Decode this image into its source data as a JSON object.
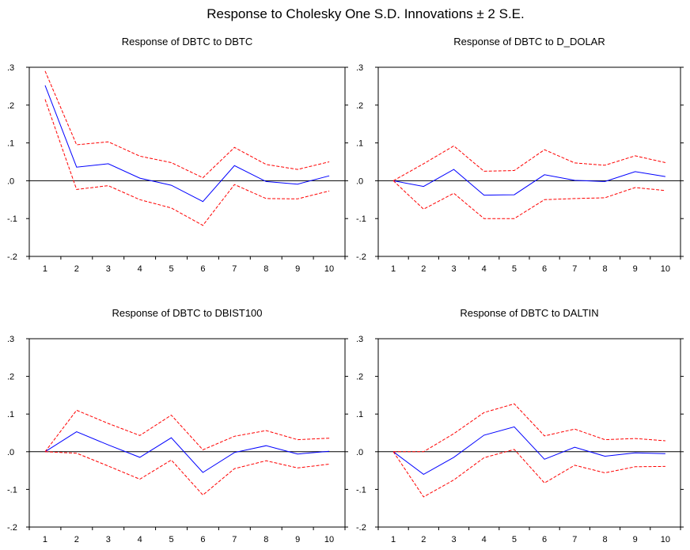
{
  "figure": {
    "title": "Response to Cholesky One S.D. Innovations ± 2 S.E."
  },
  "colors": {
    "response": "#0000ff",
    "band": "#ff0000",
    "axis": "#000000",
    "zero_line": "#000000"
  },
  "chart_data": [
    {
      "type": "line",
      "title": "Response of DBTC to DBTC",
      "x": [
        1,
        2,
        3,
        4,
        5,
        6,
        7,
        8,
        9,
        10
      ],
      "ylim": [
        -0.2,
        0.3
      ],
      "yticks": [
        ".3",
        ".2",
        ".1",
        ".0",
        "-.1",
        "-.2"
      ],
      "grid": false,
      "series": [
        {
          "role": "response",
          "values": [
            0.252,
            0.036,
            0.045,
            0.007,
            -0.012,
            -0.055,
            0.04,
            -0.002,
            -0.009,
            0.013
          ]
        },
        {
          "role": "upper",
          "values": [
            0.29,
            0.095,
            0.103,
            0.065,
            0.048,
            0.008,
            0.088,
            0.043,
            0.03,
            0.05
          ]
        },
        {
          "role": "lower",
          "values": [
            0.215,
            -0.023,
            -0.013,
            -0.05,
            -0.072,
            -0.118,
            -0.01,
            -0.047,
            -0.048,
            -0.027
          ]
        }
      ]
    },
    {
      "type": "line",
      "title": "Response of DBTC to D_DOLAR",
      "x": [
        1,
        2,
        3,
        4,
        5,
        6,
        7,
        8,
        9,
        10
      ],
      "ylim": [
        -0.2,
        0.3
      ],
      "yticks": [
        ".3",
        ".2",
        ".1",
        ".0",
        "-.1",
        "-.2"
      ],
      "grid": false,
      "series": [
        {
          "role": "response",
          "values": [
            0.0,
            -0.015,
            0.03,
            -0.038,
            -0.037,
            0.016,
            0.001,
            -0.002,
            0.024,
            0.011
          ]
        },
        {
          "role": "upper",
          "values": [
            0.0,
            0.045,
            0.092,
            0.025,
            0.027,
            0.082,
            0.047,
            0.041,
            0.066,
            0.048
          ]
        },
        {
          "role": "lower",
          "values": [
            0.0,
            -0.075,
            -0.033,
            -0.1,
            -0.1,
            -0.05,
            -0.047,
            -0.045,
            -0.018,
            -0.026
          ]
        }
      ]
    },
    {
      "type": "line",
      "title": "Response of DBTC to DBIST100",
      "x": [
        1,
        2,
        3,
        4,
        5,
        6,
        7,
        8,
        9,
        10
      ],
      "ylim": [
        -0.2,
        0.3
      ],
      "yticks": [
        ".3",
        ".2",
        ".1",
        ".0",
        "-.1",
        "-.2"
      ],
      "grid": false,
      "series": [
        {
          "role": "response",
          "values": [
            0.0,
            0.053,
            0.018,
            -0.015,
            0.037,
            -0.055,
            -0.002,
            0.016,
            -0.006,
            0.001
          ]
        },
        {
          "role": "upper",
          "values": [
            0.0,
            0.11,
            0.075,
            0.043,
            0.097,
            0.005,
            0.041,
            0.056,
            0.032,
            0.036
          ]
        },
        {
          "role": "lower",
          "values": [
            0.0,
            -0.004,
            -0.038,
            -0.073,
            -0.022,
            -0.115,
            -0.045,
            -0.024,
            -0.043,
            -0.033
          ]
        }
      ]
    },
    {
      "type": "line",
      "title": "Response of DBTC to DALTIN",
      "x": [
        1,
        2,
        3,
        4,
        5,
        6,
        7,
        8,
        9,
        10
      ],
      "ylim": [
        -0.2,
        0.3
      ],
      "yticks": [
        ".3",
        ".2",
        ".1",
        ".0",
        "-.1",
        "-.2"
      ],
      "grid": false,
      "series": [
        {
          "role": "response",
          "values": [
            0.0,
            -0.06,
            -0.015,
            0.044,
            0.066,
            -0.02,
            0.012,
            -0.012,
            -0.003,
            -0.005
          ]
        },
        {
          "role": "upper",
          "values": [
            0.0,
            0.0,
            0.048,
            0.104,
            0.127,
            0.042,
            0.06,
            0.032,
            0.035,
            0.029
          ]
        },
        {
          "role": "lower",
          "values": [
            0.0,
            -0.12,
            -0.075,
            -0.016,
            0.006,
            -0.083,
            -0.036,
            -0.056,
            -0.04,
            -0.039
          ]
        }
      ]
    }
  ]
}
